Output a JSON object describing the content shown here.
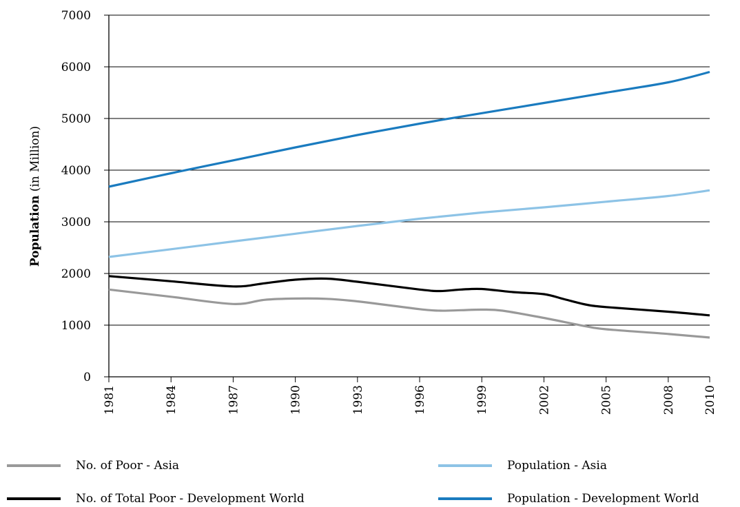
{
  "chart_data": {
    "type": "line",
    "title": "",
    "xlabel": "",
    "ylabel_bold": "Population",
    "ylabel_rest": " (in Million)",
    "x": [
      1981,
      1984,
      1987,
      1990,
      1993,
      1996,
      1999,
      2002,
      2005,
      2008,
      2010
    ],
    "x_tick_labels": [
      "1981",
      "1984",
      "1987",
      "1990",
      "1993",
      "1996",
      "1999",
      "2002",
      "2005",
      "2008",
      "2010"
    ],
    "ylim": [
      0,
      7000
    ],
    "y_ticks": [
      0,
      1000,
      2000,
      3000,
      4000,
      5000,
      6000,
      7000
    ],
    "y_tick_labels": [
      "0",
      "1000",
      "2000",
      "3000",
      "4000",
      "5000",
      "6000",
      "7000"
    ],
    "grid": "horizontal",
    "legend_position": "bottom",
    "series": [
      {
        "name": "No. of Poor - Asia",
        "color": "#999999",
        "points": [
          [
            1981,
            1690
          ],
          [
            1984,
            1550
          ],
          [
            1987,
            1410
          ],
          [
            1988.5,
            1490
          ],
          [
            1990,
            1515
          ],
          [
            1991.5,
            1510
          ],
          [
            1993,
            1460
          ],
          [
            1996,
            1310
          ],
          [
            1997,
            1280
          ],
          [
            1998,
            1290
          ],
          [
            1999,
            1300
          ],
          [
            2000,
            1280
          ],
          [
            2002,
            1140
          ],
          [
            2004,
            980
          ],
          [
            2005,
            920
          ],
          [
            2008,
            830
          ],
          [
            2010,
            760
          ]
        ]
      },
      {
        "name": "No. of Total Poor - Development World",
        "color": "#000000",
        "points": [
          [
            1981,
            1950
          ],
          [
            1984,
            1850
          ],
          [
            1987,
            1750
          ],
          [
            1988.5,
            1810
          ],
          [
            1990,
            1880
          ],
          [
            1991.5,
            1900
          ],
          [
            1993,
            1840
          ],
          [
            1996,
            1690
          ],
          [
            1997,
            1660
          ],
          [
            1998,
            1690
          ],
          [
            1999,
            1700
          ],
          [
            2000.5,
            1640
          ],
          [
            2002,
            1600
          ],
          [
            2003,
            1500
          ],
          [
            2004,
            1400
          ],
          [
            2005,
            1350
          ],
          [
            2008,
            1260
          ],
          [
            2010,
            1190
          ]
        ]
      },
      {
        "name": "Population - Asia",
        "color": "#8DC3E6",
        "points": [
          [
            1981,
            2320
          ],
          [
            1984,
            2470
          ],
          [
            1987,
            2620
          ],
          [
            1990,
            2770
          ],
          [
            1993,
            2920
          ],
          [
            1996,
            3060
          ],
          [
            1999,
            3180
          ],
          [
            2002,
            3280
          ],
          [
            2005,
            3390
          ],
          [
            2008,
            3500
          ],
          [
            2010,
            3610
          ]
        ]
      },
      {
        "name": "Population - Development World",
        "color": "#1A7BBF",
        "points": [
          [
            1981,
            3680
          ],
          [
            1984,
            3940
          ],
          [
            1987,
            4190
          ],
          [
            1990,
            4440
          ],
          [
            1993,
            4680
          ],
          [
            1996,
            4900
          ],
          [
            1998.5,
            5070
          ],
          [
            2002,
            5300
          ],
          [
            2005,
            5500
          ],
          [
            2008,
            5700
          ],
          [
            2010,
            5900
          ]
        ]
      }
    ]
  },
  "legend": {
    "items": [
      {
        "label": "No. of Poor - Asia",
        "color": "#999999"
      },
      {
        "label": "Population - Asia",
        "color": "#8DC3E6"
      },
      {
        "label": "No. of Total Poor - Development World",
        "color": "#000000"
      },
      {
        "label": "Population - Development World",
        "color": "#1A7BBF"
      }
    ]
  }
}
